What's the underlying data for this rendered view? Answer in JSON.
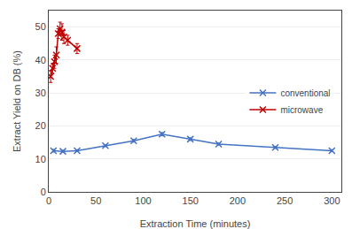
{
  "chart_data": {
    "type": "line",
    "xlabel": "Extraction Time (minutes)",
    "ylabel": "Extract Yield on DB (%)",
    "series": [
      {
        "name": "conventional",
        "color": "#4472C4",
        "marker": "x",
        "x": [
          5,
          15,
          30,
          60,
          90,
          120,
          150,
          180,
          240,
          300
        ],
        "values": [
          12.5,
          12.3,
          12.5,
          14.0,
          15.5,
          17.5,
          16.0,
          14.5,
          13.5,
          12.5
        ],
        "yerr": [
          0.4,
          0.3,
          0.3,
          0.3,
          0.4,
          0.5,
          0.4,
          0.3,
          0.3,
          0.3
        ]
      },
      {
        "name": "microwave",
        "color": "#C00000",
        "marker": "x",
        "x": [
          2,
          4,
          6,
          8,
          10,
          12,
          14,
          16,
          20,
          30
        ],
        "values": [
          35.0,
          37.5,
          39.5,
          41.5,
          48.0,
          49.5,
          48.5,
          47.0,
          46.0,
          43.5
        ],
        "yerr": [
          1.8,
          1.5,
          2.0,
          2.5,
          1.5,
          2.0,
          2.5,
          2.0,
          1.5,
          1.5
        ]
      }
    ],
    "xlim": [
      0,
      310
    ],
    "ylim": [
      0,
      55
    ],
    "xticks": [
      0,
      50,
      100,
      150,
      200,
      250,
      300
    ],
    "yticks": [
      0,
      10,
      20,
      30,
      40,
      50
    ],
    "grid": "y",
    "legend": "center right"
  }
}
